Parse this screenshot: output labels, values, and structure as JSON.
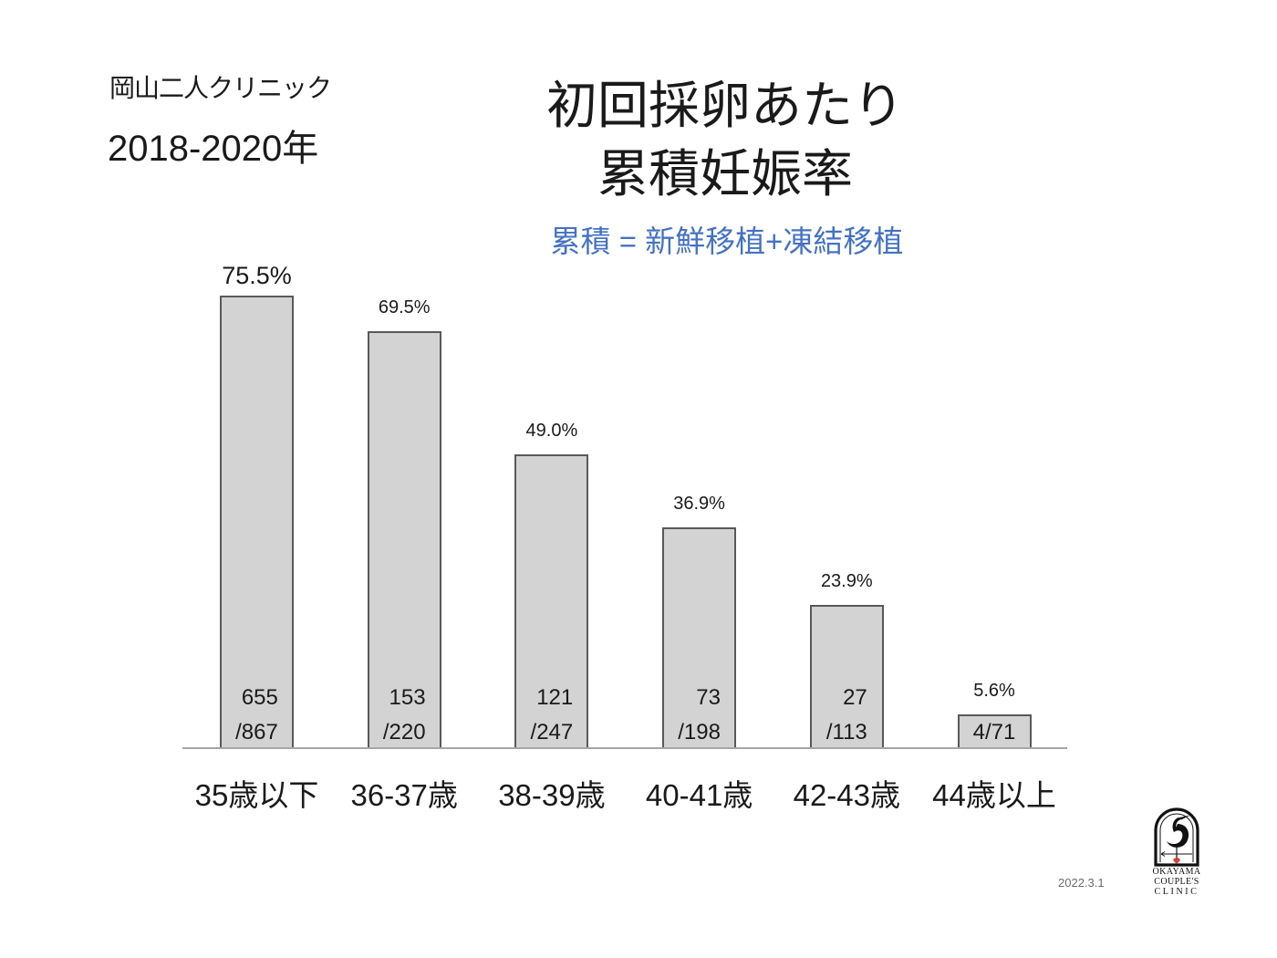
{
  "header": {
    "clinic_name": "岡山二人クリニック",
    "period": "2018-2020年"
  },
  "chart_data": {
    "type": "bar",
    "title": [
      "初回採卵あたり",
      "累積妊娠率"
    ],
    "subtitle": "累積 = 新鮮移植+凍結移植",
    "categories": [
      "35歳以下",
      "36-37歳",
      "38-39歳",
      "40-41歳",
      "42-43歳",
      "44歳以上"
    ],
    "values": [
      75.5,
      69.5,
      49.0,
      36.9,
      23.9,
      5.6
    ],
    "value_labels": [
      "75.5%",
      "69.5%",
      "49.0%",
      "36.9%",
      "23.9%",
      "5.6%"
    ],
    "fraction_labels": [
      [
        "655",
        "/867"
      ],
      [
        "153",
        "/220"
      ],
      [
        "121",
        "/247"
      ],
      [
        "73",
        "/198"
      ],
      [
        "27",
        "/113"
      ],
      [
        "4/71"
      ]
    ],
    "ylim": [
      0,
      100
    ],
    "grid": false,
    "legend": "none"
  },
  "footer": {
    "date": "2022.3.1"
  },
  "logo": {
    "icon": "crane-emblem-icon",
    "lines": [
      "OKAYAMA",
      "COUPLE'S",
      "CLINIC"
    ]
  },
  "colors": {
    "text": "#1a1a1a",
    "subtitle": "#4472c4",
    "bar_fill": "#d3d3d3",
    "bar_border": "#595959",
    "baseline": "#a6a6a6",
    "date": "#6b6b6b",
    "logo_accent": "#d9403a"
  }
}
